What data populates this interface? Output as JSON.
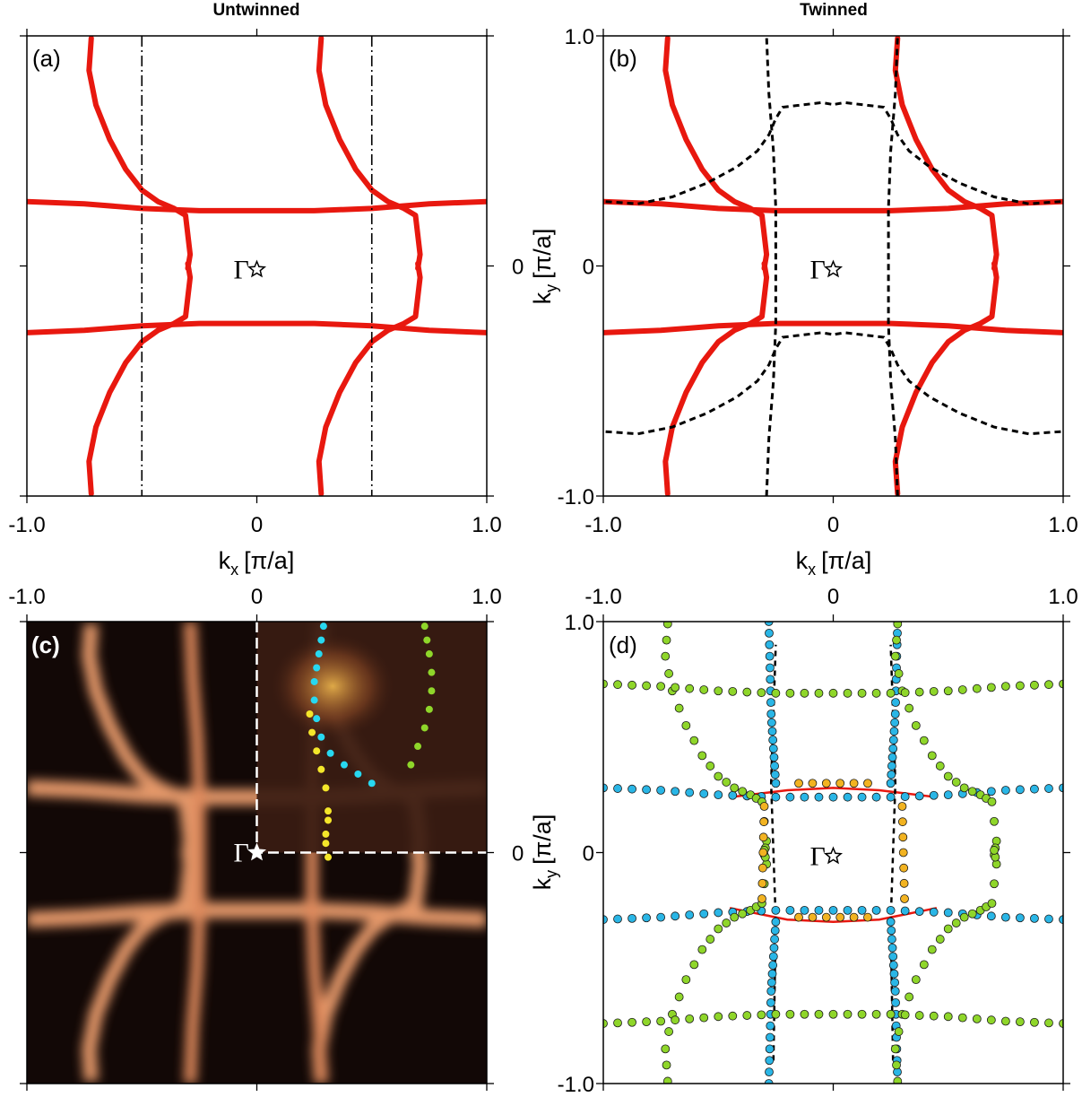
{
  "titles": {
    "left": "Untwinned",
    "right": "Twinned"
  },
  "gamma_label": "Γ",
  "axes": {
    "kx_label": "k",
    "kx_sub": "x",
    "ky_label": "k",
    "ky_sub": "y",
    "unit": "[π/a]"
  },
  "colors": {
    "fs_red": "#e8180f",
    "twin_dashed": "#000000",
    "dot_blue": "#2ab6e6",
    "dot_green": "#8fd62a",
    "dot_orange": "#f2b321",
    "dot_yellow": "#f4e62a",
    "dot_cyan": "#27d8f0"
  },
  "chart_data": [
    {
      "panel": "(a)",
      "type": "line",
      "title": "Untwinned",
      "xlabel": "k_x [π/a]",
      "ylabel": "",
      "xlim": [
        -1.0,
        1.0
      ],
      "ylim": [
        -1.0,
        1.0
      ],
      "xticks": [
        "-1.0",
        "0",
        "1.0"
      ],
      "yticks": [],
      "marker_label": "Γ",
      "series": [
        {
          "role": "wavy-band",
          "style": "red-solid",
          "x": [
            -1.0,
            -0.75,
            -0.5,
            -0.25,
            0.0,
            0.25,
            0.5,
            0.75,
            1.0
          ],
          "y": [
            0.28,
            0.27,
            0.25,
            0.24,
            0.24,
            0.24,
            0.25,
            0.27,
            0.28
          ]
        },
        {
          "role": "wavy-band",
          "style": "red-solid",
          "x": [
            -1.0,
            -0.75,
            -0.5,
            -0.25,
            0.0,
            0.25,
            0.5,
            0.75,
            1.0
          ],
          "y": [
            -0.29,
            -0.28,
            -0.26,
            -0.25,
            -0.25,
            -0.25,
            -0.26,
            -0.28,
            -0.29
          ]
        },
        {
          "role": "pocket",
          "style": "red-solid",
          "x": [
            -0.72,
            -0.73,
            -0.7,
            -0.64,
            -0.57,
            -0.5,
            -0.43,
            -0.36,
            -0.31,
            -0.29,
            -0.3
          ],
          "y": [
            0.99,
            0.85,
            0.7,
            0.55,
            0.42,
            0.33,
            0.28,
            0.25,
            0.22,
            0.05,
            -0.01
          ]
        },
        {
          "role": "pocket",
          "style": "red-solid",
          "x": [
            -0.72,
            -0.73,
            -0.7,
            -0.64,
            -0.57,
            -0.5,
            -0.43,
            -0.36,
            -0.31,
            -0.29,
            -0.3
          ],
          "y": [
            -0.99,
            -0.85,
            -0.7,
            -0.55,
            -0.42,
            -0.33,
            -0.28,
            -0.25,
            -0.22,
            -0.05,
            0.01
          ]
        }
      ],
      "reference_lines": {
        "style": "dash-dot",
        "x": [
          -0.5,
          0.5
        ]
      }
    },
    {
      "panel": "(b)",
      "type": "line",
      "title": "Twinned",
      "xlabel": "k_x [π/a]",
      "ylabel": "k_y [π/a]",
      "xlim": [
        -1.0,
        1.0
      ],
      "ylim": [
        -1.0,
        1.0
      ],
      "xticks": [
        "-1.0",
        "0",
        "1.0"
      ],
      "yticks": [
        "-1.0",
        "0",
        "1.0"
      ],
      "marker_label": "Γ",
      "series": [
        {
          "role": "red-fermi-surface",
          "style": "red-solid",
          "same_as": "(a)"
        },
        {
          "role": "twin-domain-fermi-surface",
          "style": "black-dashed",
          "note": "90°-rotated copy of the red contours"
        }
      ]
    },
    {
      "panel": "(c)",
      "type": "heatmap",
      "title": "",
      "xlabel": "",
      "ylabel": "",
      "xlim": [
        -1.0,
        1.0
      ],
      "ylim": [
        -1.0,
        1.0
      ],
      "xticks": [
        "-1.0",
        "0",
        "1.0"
      ],
      "yticks": [
        "0"
      ],
      "marker_label": "Γ",
      "points": [
        {
          "color": "cyan",
          "x": [
            0.29,
            0.28,
            0.27,
            0.26,
            0.25,
            0.25,
            0.26,
            0.28,
            0.32,
            0.38,
            0.44,
            0.5
          ],
          "y": [
            0.98,
            0.92,
            0.86,
            0.8,
            0.74,
            0.66,
            0.58,
            0.5,
            0.43,
            0.38,
            0.34,
            0.3
          ]
        },
        {
          "color": "green",
          "x": [
            0.73,
            0.74,
            0.75,
            0.76,
            0.76,
            0.75,
            0.73,
            0.7,
            0.67
          ],
          "y": [
            0.98,
            0.92,
            0.86,
            0.78,
            0.7,
            0.62,
            0.54,
            0.46,
            0.38
          ]
        },
        {
          "color": "yellow",
          "x": [
            0.23,
            0.24,
            0.26,
            0.28,
            0.3,
            0.31,
            0.31,
            0.3,
            0.3,
            0.31
          ],
          "y": [
            0.6,
            0.52,
            0.44,
            0.36,
            0.28,
            0.18,
            0.14,
            0.08,
            0.04,
            -0.02
          ]
        }
      ]
    },
    {
      "panel": "(d)",
      "type": "scatter",
      "title": "",
      "xlabel": "",
      "ylabel": "k_y [π/a]",
      "xlim": [
        -1.0,
        1.0
      ],
      "ylim": [
        -1.0,
        1.0
      ],
      "xticks": [
        "-1.0",
        "0",
        "1.0"
      ],
      "yticks": [
        "-1.0",
        "0",
        "1.0"
      ],
      "marker_label": "Γ",
      "points": [
        {
          "color": "blue",
          "description": "band and twin-pocket data points"
        },
        {
          "color": "green",
          "description": "outer pocket data points"
        },
        {
          "color": "orange",
          "description": "inner-band data points"
        }
      ],
      "series": [
        {
          "style": "red-solid",
          "x": [
            -0.45,
            -0.2,
            0.0,
            0.2,
            0.45
          ],
          "y": [
            0.24,
            0.27,
            0.28,
            0.27,
            0.24
          ]
        },
        {
          "style": "red-solid",
          "x": [
            -0.45,
            -0.2,
            0.0,
            0.2,
            0.45
          ],
          "y": [
            -0.24,
            -0.29,
            -0.3,
            -0.29,
            -0.24
          ]
        },
        {
          "style": "black-dashed",
          "x": [
            -0.26,
            -0.25,
            -0.27,
            -0.25
          ],
          "y": [
            -0.9,
            -0.3,
            0.3,
            0.9
          ]
        }
      ]
    }
  ]
}
